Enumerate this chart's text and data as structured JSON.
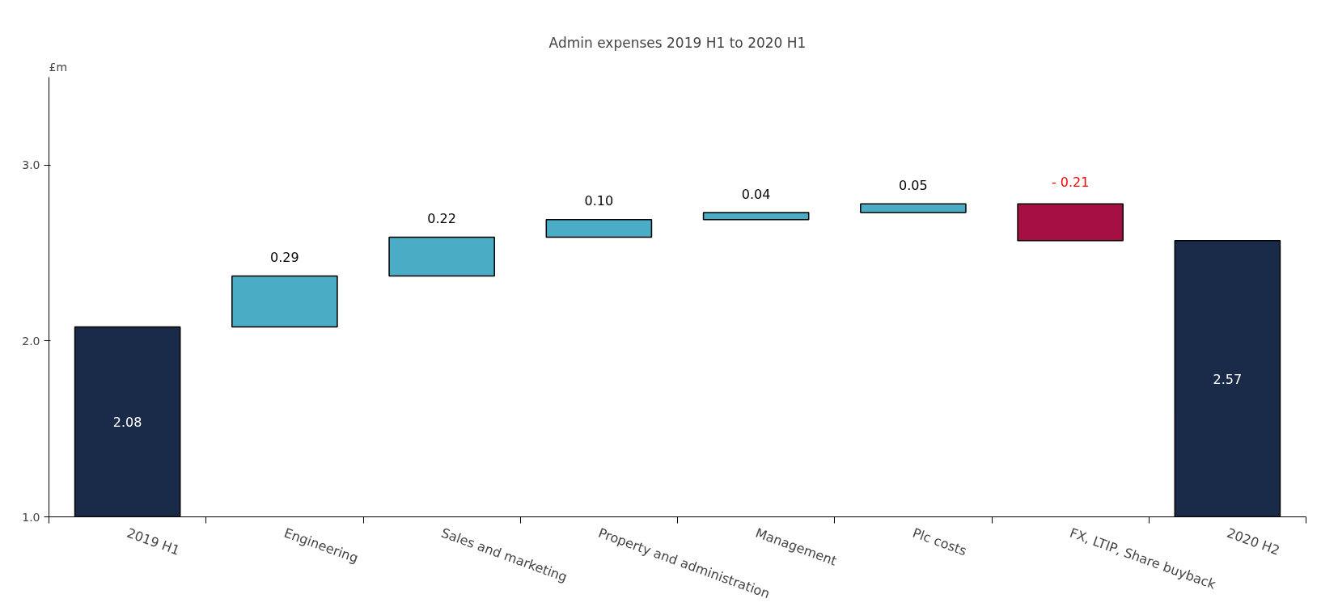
{
  "chart_data": {
    "type": "bar",
    "title": "Admin expenses 2019 H1 to 2020 H1",
    "ylabel": "£m",
    "categories": [
      "2019 H1",
      "Engineering",
      "Sales and marketing",
      "Property and administration",
      "Management",
      "Plc costs",
      "FX, LTIP, Share buyback",
      "2020 H2"
    ],
    "values": [
      2.08,
      0.29,
      0.22,
      0.1,
      0.04,
      0.05,
      -0.21,
      2.57
    ],
    "base": [
      0,
      2.08,
      2.37,
      2.59,
      2.69,
      2.73,
      2.78,
      0
    ],
    "colors": [
      "#1a2b4a",
      "#4bacc6",
      "#4bacc6",
      "#4bacc6",
      "#4bacc6",
      "#4bacc6",
      "#a50f44",
      "#1a2b4a"
    ],
    "value_labels": [
      "2.08",
      "0.29",
      "0.22",
      "0.10",
      "0.04",
      "0.05",
      "- 0.21",
      "2.57"
    ],
    "ylim": [
      1.0,
      3.5
    ],
    "yticks": [
      {
        "value": 1.0,
        "label": "1.0"
      },
      {
        "value": 2.0,
        "label": "2.0"
      },
      {
        "value": 3.0,
        "label": "3.0"
      }
    ],
    "grid": false
  }
}
